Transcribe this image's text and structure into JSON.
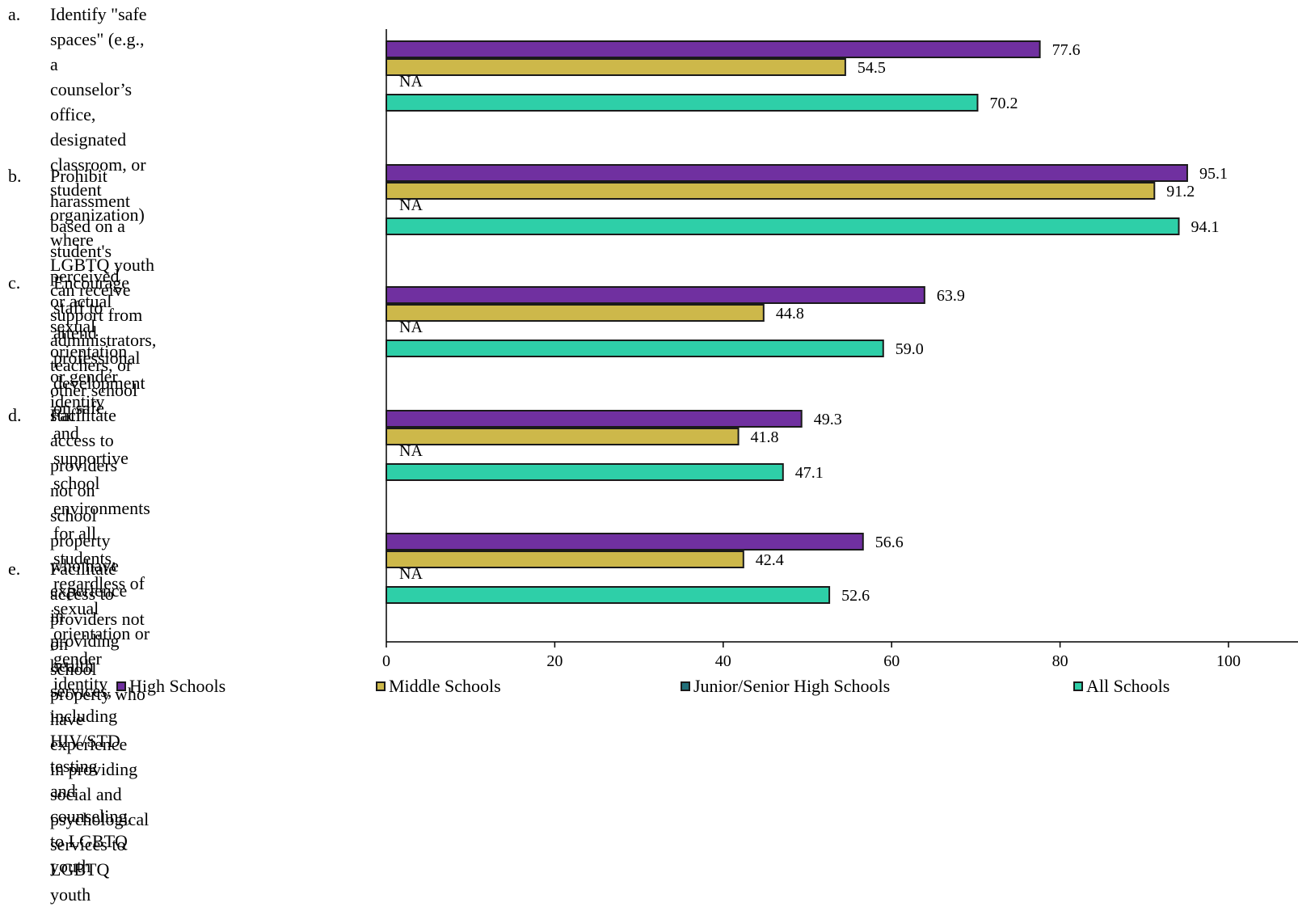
{
  "chart_data": {
    "type": "bar",
    "orientation": "horizontal",
    "categories": [
      {
        "letter": "a.",
        "text": "Identify \"safe spaces\" (e.g., a\ncounselor’s office, designated\nclassroom, or student organization)\nwhere LGBTQ youth can receive\nsupport from administrators,\nteachers, or other school staff"
      },
      {
        "letter": "b.",
        "text": "Prohibit harassment based on a\nstudent's perceived or actual sexual\norientation or gender identity"
      },
      {
        "letter": "c.",
        "text": "Encourage staff to attend\nprofessional development on safe\nand supportive school environments\nfor all students, regardless of sexual\norientation or gender identity"
      },
      {
        "letter": "d.",
        "text": "Facilitate access to providers not on\nschool property who have\nexperience in providing health\nservices, including HIV/STD testing\nand counseling, to LGBTQ youth"
      },
      {
        "letter": "e.",
        "text": "Facilitate access to providers not on\nschool property who have experience\nin providing social and psychological\nservices to LGBTQ youth"
      }
    ],
    "series": [
      {
        "name": "High Schools",
        "color": "#7030a0",
        "values": [
          77.6,
          95.1,
          63.9,
          49.3,
          56.6
        ],
        "labels": [
          "77.6",
          "95.1",
          "63.9",
          "49.3",
          "56.6"
        ]
      },
      {
        "name": "Middle Schools",
        "color": "#cdb84a",
        "values": [
          54.5,
          91.2,
          44.8,
          41.8,
          42.4
        ],
        "labels": [
          "54.5",
          "91.2",
          "44.8",
          "41.8",
          "42.4"
        ]
      },
      {
        "name": "Junior/Senior High Schools",
        "color": "#21707a",
        "values": [
          null,
          null,
          null,
          null,
          null
        ],
        "labels": [
          "NA",
          "NA",
          "NA",
          "NA",
          "NA"
        ]
      },
      {
        "name": "All Schools",
        "color": "#2ecfa8",
        "values": [
          70.2,
          94.1,
          59.0,
          47.1,
          52.6
        ],
        "labels": [
          "70.2",
          "94.1",
          "59.0",
          "47.1",
          "52.6"
        ]
      }
    ],
    "xlim": [
      0,
      100
    ],
    "xticks": [
      "0",
      "20",
      "40",
      "60",
      "80",
      "100"
    ],
    "legend_position": "bottom",
    "grid": false
  }
}
